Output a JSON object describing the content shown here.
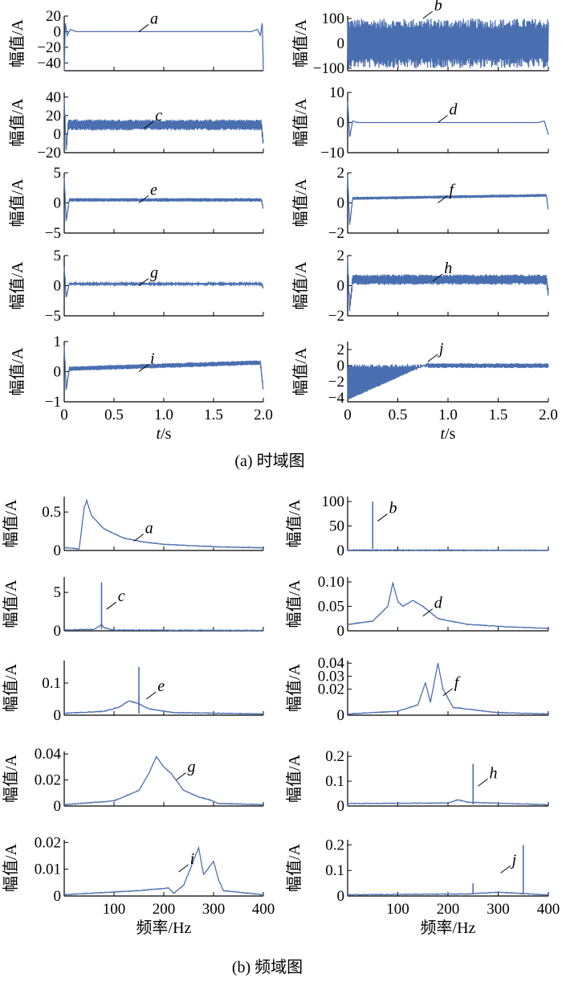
{
  "figure": {
    "caption_time": "(a)  时域图",
    "caption_freq": "(b)  频域图"
  },
  "color": "#4a6fb0",
  "chart_data": [
    {
      "panel": "time-a",
      "type": "line",
      "label": "a",
      "ylabel": "幅值/A",
      "xlabel": "t/s",
      "xlim": [
        0,
        2
      ],
      "ylim": [
        -50,
        20
      ],
      "yticks": [
        "20",
        "0",
        "−20",
        "−40"
      ],
      "xticks": [],
      "points": [
        [
          0,
          -50
        ],
        [
          0.01,
          12
        ],
        [
          0.03,
          -5
        ],
        [
          0.06,
          3
        ],
        [
          0.12,
          0
        ],
        [
          1.88,
          0
        ],
        [
          1.94,
          3
        ],
        [
          1.97,
          -5
        ],
        [
          1.99,
          12
        ],
        [
          2,
          -50
        ]
      ],
      "annotation": [
        0.75,
        0
      ]
    },
    {
      "panel": "time-b",
      "type": "line",
      "label": "b",
      "ylabel": "幅值/A",
      "xlabel": "t/s",
      "xlim": [
        0,
        2
      ],
      "ylim": [
        -110,
        110
      ],
      "yticks": [
        "100",
        "0",
        "−100"
      ],
      "xticks": [],
      "amplitude_envelope": 100,
      "annotation": [
        0.75,
        100
      ]
    },
    {
      "panel": "time-c",
      "type": "line",
      "label": "c",
      "ylabel": "幅值/A",
      "xlabel": "t/s",
      "xlim": [
        0,
        2
      ],
      "ylim": [
        -20,
        45
      ],
      "yticks": [
        "40",
        "20",
        "0",
        "−20"
      ],
      "xticks": [],
      "amplitude_envelope": 6,
      "points": [
        [
          0,
          35
        ],
        [
          0.02,
          -15
        ],
        [
          0.04,
          10
        ],
        [
          1.98,
          10
        ],
        [
          2,
          -10
        ]
      ],
      "annotation": [
        0.8,
        6
      ]
    },
    {
      "panel": "time-d",
      "type": "line",
      "label": "d",
      "ylabel": "幅值/A",
      "xlabel": "t/s",
      "xlim": [
        0,
        2
      ],
      "ylim": [
        -10,
        10
      ],
      "yticks": [
        "10",
        "0",
        "−10"
      ],
      "xticks": [],
      "points": [
        [
          0,
          7
        ],
        [
          0.02,
          -5
        ],
        [
          0.05,
          0.5
        ],
        [
          0.1,
          0
        ],
        [
          1.9,
          0
        ],
        [
          1.96,
          0.5
        ],
        [
          2,
          -4
        ]
      ],
      "annotation": [
        0.9,
        0
      ]
    },
    {
      "panel": "time-e",
      "type": "line",
      "label": "e",
      "ylabel": "幅值/A",
      "xlabel": "t/s",
      "xlim": [
        0,
        2
      ],
      "ylim": [
        -5,
        5
      ],
      "yticks": [
        "5",
        "0",
        "−5"
      ],
      "xticks": [],
      "amplitude_envelope": 0.3,
      "points": [
        [
          0,
          4
        ],
        [
          0.02,
          -3
        ],
        [
          0.05,
          0.5
        ],
        [
          1.98,
          0.5
        ],
        [
          2,
          -1
        ]
      ],
      "annotation": [
        0.75,
        0
      ]
    },
    {
      "panel": "time-f",
      "type": "line",
      "label": "f",
      "ylabel": "幅值/A",
      "xlabel": "t/s",
      "xlim": [
        0,
        2
      ],
      "ylim": [
        -2,
        2
      ],
      "yticks": [
        "2",
        "0",
        "−2"
      ],
      "xticks": [],
      "amplitude_envelope": 0.1,
      "points": [
        [
          0,
          1.8
        ],
        [
          0.02,
          -1.5
        ],
        [
          0.05,
          0.3
        ],
        [
          1.98,
          0.5
        ],
        [
          2,
          -0.5
        ]
      ],
      "annotation": [
        0.9,
        0
      ]
    },
    {
      "panel": "time-g",
      "type": "line",
      "label": "g",
      "ylabel": "幅值/A",
      "xlabel": "t/s",
      "xlim": [
        0,
        2
      ],
      "ylim": [
        -5,
        5
      ],
      "yticks": [
        "5",
        "0",
        "−5"
      ],
      "xticks": [],
      "amplitude_envelope": 0.15,
      "points": [
        [
          0,
          3
        ],
        [
          0.02,
          -2
        ],
        [
          0.05,
          0.3
        ],
        [
          1.98,
          0.3
        ],
        [
          2,
          -0.3
        ]
      ],
      "annotation": [
        0.75,
        0
      ]
    },
    {
      "panel": "time-h",
      "type": "line",
      "label": "h",
      "ylabel": "幅值/A",
      "xlabel": "t/s",
      "xlim": [
        0,
        2
      ],
      "ylim": [
        -2,
        2
      ],
      "yticks": [
        "2",
        "0",
        "−2"
      ],
      "xticks": [],
      "amplitude_envelope": 0.35,
      "points": [
        [
          0,
          1.6
        ],
        [
          0.02,
          -1.5
        ],
        [
          0.05,
          0.4
        ],
        [
          1.98,
          0.4
        ],
        [
          2,
          -0.5
        ]
      ],
      "annotation": [
        0.85,
        0.3
      ]
    },
    {
      "panel": "time-i",
      "type": "line",
      "label": "i",
      "ylabel": "幅值/A",
      "xlabel": "t/s",
      "xlim": [
        0,
        2
      ],
      "ylim": [
        -1,
        1
      ],
      "yticks": [
        "1",
        "0",
        "−1"
      ],
      "xticks": [
        "0",
        "0.5",
        "1.0",
        "1.5",
        "2.0"
      ],
      "amplitude_envelope": 0.08,
      "points": [
        [
          0,
          0.8
        ],
        [
          0.02,
          -0.6
        ],
        [
          0.05,
          0.1
        ],
        [
          1.97,
          0.3
        ],
        [
          2,
          -0.6
        ]
      ],
      "annotation": [
        0.75,
        0
      ]
    },
    {
      "panel": "time-j",
      "type": "line",
      "label": "j",
      "ylabel": "幅值/A",
      "xlabel": "t/s",
      "xlim": [
        0,
        2
      ],
      "ylim": [
        -4.5,
        3
      ],
      "yticks": [
        "2",
        "0",
        "−2",
        "−4"
      ],
      "xticks": [
        "0",
        "0.5",
        "1.0",
        "1.5",
        "2.0"
      ],
      "ramp": [
        [
          0,
          -4.5
        ],
        [
          0.8,
          0
        ]
      ],
      "amplitude_envelope": 0.3,
      "annotation": [
        0.8,
        0.5
      ]
    },
    {
      "panel": "freq-a",
      "type": "line",
      "label": "a",
      "ylabel": "幅值/A",
      "xlabel": "频率/Hz",
      "xlim": [
        0,
        400
      ],
      "ylim": [
        0,
        0.7
      ],
      "yticks": [
        "0.5",
        "0"
      ],
      "xticks": [],
      "points": [
        [
          0,
          0.04
        ],
        [
          30,
          0.02
        ],
        [
          40,
          0.55
        ],
        [
          45,
          0.65
        ],
        [
          55,
          0.45
        ],
        [
          80,
          0.28
        ],
        [
          120,
          0.16
        ],
        [
          160,
          0.11
        ],
        [
          200,
          0.08
        ],
        [
          260,
          0.06
        ],
        [
          320,
          0.045
        ],
        [
          400,
          0.035
        ]
      ],
      "annotation": [
        140,
        0.12
      ]
    },
    {
      "panel": "freq-b",
      "type": "line",
      "label": "b",
      "ylabel": "幅值/A",
      "xlabel": "频率/Hz",
      "xlim": [
        0,
        400
      ],
      "ylim": [
        0,
        110
      ],
      "yticks": [
        "100",
        "50",
        "0"
      ],
      "xticks": [],
      "peaks": [
        [
          50,
          100
        ]
      ],
      "points": [
        [
          0,
          1
        ],
        [
          400,
          0.3
        ]
      ],
      "annotation": [
        60,
        60
      ]
    },
    {
      "panel": "freq-c",
      "type": "line",
      "label": "c",
      "ylabel": "幅值/A",
      "xlabel": "频率/Hz",
      "xlim": [
        0,
        400
      ],
      "ylim": [
        0,
        7
      ],
      "yticks": [
        "5",
        "0"
      ],
      "xticks": [],
      "peaks": [
        [
          75,
          6.3
        ]
      ],
      "points": [
        [
          0,
          0.1
        ],
        [
          60,
          0.2
        ],
        [
          70,
          0.6
        ],
        [
          75,
          0.8
        ],
        [
          80,
          0.4
        ],
        [
          100,
          0.1
        ],
        [
          400,
          0.05
        ]
      ],
      "annotation": [
        85,
        2.8
      ]
    },
    {
      "panel": "freq-d",
      "type": "line",
      "label": "d",
      "ylabel": "幅值/A",
      "xlabel": "频率/Hz",
      "xlim": [
        0,
        400
      ],
      "ylim": [
        0,
        0.11
      ],
      "yticks": [
        "0.10",
        "0.05",
        "0"
      ],
      "xticks": [],
      "points": [
        [
          0,
          0.013
        ],
        [
          50,
          0.02
        ],
        [
          80,
          0.05
        ],
        [
          90,
          0.098
        ],
        [
          100,
          0.06
        ],
        [
          110,
          0.05
        ],
        [
          130,
          0.062
        ],
        [
          150,
          0.05
        ],
        [
          180,
          0.025
        ],
        [
          240,
          0.013
        ],
        [
          320,
          0.008
        ],
        [
          400,
          0.005
        ]
      ],
      "annotation": [
        150,
        0.03
      ]
    },
    {
      "panel": "freq-e",
      "type": "line",
      "label": "e",
      "ylabel": "幅值/A",
      "xlabel": "频率/Hz",
      "xlim": [
        0,
        400
      ],
      "ylim": [
        0,
        0.17
      ],
      "yticks": [
        "0.1",
        "0"
      ],
      "xticks": [],
      "peaks": [
        [
          150,
          0.15
        ]
      ],
      "points": [
        [
          0,
          0.006
        ],
        [
          80,
          0.012
        ],
        [
          110,
          0.025
        ],
        [
          130,
          0.045
        ],
        [
          150,
          0.035
        ],
        [
          170,
          0.02
        ],
        [
          220,
          0.008
        ],
        [
          400,
          0.004
        ]
      ],
      "annotation": [
        165,
        0.05
      ]
    },
    {
      "panel": "freq-f",
      "type": "line",
      "label": "f",
      "ylabel": "幅值/A",
      "xlabel": "频率/Hz",
      "xlim": [
        0,
        400
      ],
      "ylim": [
        0,
        0.042
      ],
      "yticks": [
        "0.04",
        "0.03",
        "0.02",
        "0"
      ],
      "xticks": [],
      "points": [
        [
          0,
          0.001
        ],
        [
          100,
          0.003
        ],
        [
          140,
          0.008
        ],
        [
          155,
          0.025
        ],
        [
          165,
          0.01
        ],
        [
          180,
          0.04
        ],
        [
          190,
          0.02
        ],
        [
          210,
          0.006
        ],
        [
          300,
          0.002
        ],
        [
          400,
          0.001
        ]
      ],
      "annotation": [
        190,
        0.015
      ]
    },
    {
      "panel": "freq-g",
      "type": "line",
      "label": "g",
      "ylabel": "幅值/A",
      "xlabel": "频率/Hz",
      "xlim": [
        0,
        400
      ],
      "ylim": [
        0,
        0.042
      ],
      "yticks": [
        "0.04",
        "0.02",
        "0"
      ],
      "xticks": [],
      "points": [
        [
          0,
          0.001
        ],
        [
          100,
          0.004
        ],
        [
          150,
          0.012
        ],
        [
          170,
          0.025
        ],
        [
          185,
          0.038
        ],
        [
          200,
          0.03
        ],
        [
          215,
          0.025
        ],
        [
          240,
          0.012
        ],
        [
          270,
          0.007
        ],
        [
          290,
          0.005
        ],
        [
          310,
          0.002
        ],
        [
          400,
          0.001
        ]
      ],
      "annotation": [
        225,
        0.02
      ]
    },
    {
      "panel": "freq-h",
      "type": "line",
      "label": "h",
      "ylabel": "幅值/A",
      "xlabel": "频率/Hz",
      "xlim": [
        0,
        400
      ],
      "ylim": [
        0,
        0.22
      ],
      "yticks": [
        "0.2",
        "0.1",
        "0"
      ],
      "xticks": [],
      "peaks": [
        [
          250,
          0.17
        ]
      ],
      "points": [
        [
          0,
          0.01
        ],
        [
          200,
          0.012
        ],
        [
          220,
          0.025
        ],
        [
          240,
          0.015
        ],
        [
          400,
          0.005
        ]
      ],
      "annotation": [
        260,
        0.08
      ]
    },
    {
      "panel": "freq-i",
      "type": "line",
      "label": "i",
      "ylabel": "幅值/A",
      "xlabel": "频率/Hz",
      "xlim": [
        0,
        400
      ],
      "ylim": [
        0,
        0.021
      ],
      "yticks": [
        "0.02",
        "0.01",
        "0"
      ],
      "xticks": [
        "100",
        "200",
        "300",
        "400"
      ],
      "points": [
        [
          0,
          0.0005
        ],
        [
          150,
          0.002
        ],
        [
          210,
          0.003
        ],
        [
          220,
          0.001
        ],
        [
          240,
          0.004
        ],
        [
          270,
          0.018
        ],
        [
          280,
          0.008
        ],
        [
          300,
          0.013
        ],
        [
          310,
          0.006
        ],
        [
          320,
          0.002
        ],
        [
          400,
          0.0005
        ]
      ],
      "annotation": [
        230,
        0.009
      ]
    },
    {
      "panel": "freq-j",
      "type": "line",
      "label": "j",
      "ylabel": "幅值/A",
      "xlabel": "频率/Hz",
      "xlim": [
        0,
        400
      ],
      "ylim": [
        0,
        0.22
      ],
      "yticks": [
        "0.2",
        "0.1",
        "0"
      ],
      "xticks": [
        "100",
        "200",
        "300",
        "400"
      ],
      "peaks": [
        [
          250,
          0.05
        ],
        [
          350,
          0.2
        ]
      ],
      "points": [
        [
          0,
          0.005
        ],
        [
          240,
          0.008
        ],
        [
          300,
          0.015
        ],
        [
          400,
          0.004
        ]
      ],
      "annotation": [
        305,
        0.09
      ]
    }
  ]
}
